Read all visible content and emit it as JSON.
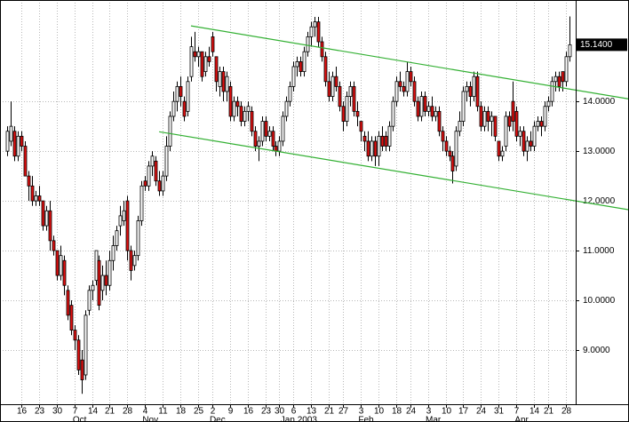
{
  "chart_data": {
    "type": "candlestick",
    "x": [
      "2002-09-10",
      "2002-09-11",
      "2002-09-12",
      "2002-09-13",
      "2002-09-16",
      "2002-09-17",
      "2002-09-18",
      "2002-09-19",
      "2002-09-20",
      "2002-09-23",
      "2002-09-24",
      "2002-09-25",
      "2002-09-26",
      "2002-09-27",
      "2002-09-30",
      "2002-10-01",
      "2002-10-02",
      "2002-10-03",
      "2002-10-04",
      "2002-10-07",
      "2002-10-08",
      "2002-10-09",
      "2002-10-10",
      "2002-10-11",
      "2002-10-14",
      "2002-10-15",
      "2002-10-16",
      "2002-10-17",
      "2002-10-18",
      "2002-10-21",
      "2002-10-22",
      "2002-10-23",
      "2002-10-24",
      "2002-10-25",
      "2002-10-28",
      "2002-10-29",
      "2002-10-30",
      "2002-10-31",
      "2002-11-01",
      "2002-11-04",
      "2002-11-05",
      "2002-11-06",
      "2002-11-07",
      "2002-11-08",
      "2002-11-11",
      "2002-11-12",
      "2002-11-13",
      "2002-11-14",
      "2002-11-15",
      "2002-11-18",
      "2002-11-19",
      "2002-11-20",
      "2002-11-21",
      "2002-11-22",
      "2002-11-25",
      "2002-11-26",
      "2002-11-27",
      "2002-11-29",
      "2002-12-02",
      "2002-12-03",
      "2002-12-04",
      "2002-12-05",
      "2002-12-06",
      "2002-12-09",
      "2002-12-10",
      "2002-12-11",
      "2002-12-12",
      "2002-12-13",
      "2002-12-16",
      "2002-12-17",
      "2002-12-18",
      "2002-12-19",
      "2002-12-20",
      "2002-12-23",
      "2002-12-24",
      "2002-12-26",
      "2002-12-27",
      "2002-12-30",
      "2002-12-31",
      "2003-01-02",
      "2003-01-03",
      "2003-01-06",
      "2003-01-07",
      "2003-01-08",
      "2003-01-09",
      "2003-01-10",
      "2003-01-13",
      "2003-01-14",
      "2003-01-15",
      "2003-01-16",
      "2003-01-17",
      "2003-01-21",
      "2003-01-22",
      "2003-01-23",
      "2003-01-24",
      "2003-01-27",
      "2003-01-28",
      "2003-01-29",
      "2003-01-30",
      "2003-01-31",
      "2003-02-03",
      "2003-02-04",
      "2003-02-05",
      "2003-02-06",
      "2003-02-07",
      "2003-02-10",
      "2003-02-11",
      "2003-02-12",
      "2003-02-13",
      "2003-02-14",
      "2003-02-18",
      "2003-02-19",
      "2003-02-20",
      "2003-02-21",
      "2003-02-24",
      "2003-02-25",
      "2003-02-26",
      "2003-02-27",
      "2003-02-28",
      "2003-03-03",
      "2003-03-04",
      "2003-03-05",
      "2003-03-06",
      "2003-03-07",
      "2003-03-10",
      "2003-03-11",
      "2003-03-12",
      "2003-03-13",
      "2003-03-14",
      "2003-03-17",
      "2003-03-18",
      "2003-03-19",
      "2003-03-20",
      "2003-03-21",
      "2003-03-24",
      "2003-03-25",
      "2003-03-26",
      "2003-03-27",
      "2003-03-28",
      "2003-03-31",
      "2003-04-01",
      "2003-04-02",
      "2003-04-03",
      "2003-04-04",
      "2003-04-07",
      "2003-04-08",
      "2003-04-09",
      "2003-04-10",
      "2003-04-11",
      "2003-04-14",
      "2003-04-15",
      "2003-04-16",
      "2003-04-17",
      "2003-04-21",
      "2003-04-22",
      "2003-04-23",
      "2003-04-24",
      "2003-04-25",
      "2003-04-28",
      "2003-04-29"
    ],
    "open": [
      13.0,
      13.2,
      13.4,
      12.9,
      13.3,
      13.1,
      12.5,
      12.3,
      12.0,
      12.1,
      12.0,
      11.5,
      11.8,
      11.2,
      11.0,
      10.5,
      10.8,
      10.2,
      9.9,
      9.4,
      9.2,
      8.8,
      8.5,
      9.8,
      10.2,
      10.4,
      10.8,
      10.2,
      10.5,
      10.3,
      10.8,
      11.1,
      11.5,
      11.6,
      12.0,
      11.0,
      10.7,
      10.9,
      11.6,
      12.4,
      12.3,
      12.7,
      12.8,
      12.4,
      12.2,
      12.5,
      13.1,
      13.7,
      14.0,
      14.3,
      14.0,
      13.8,
      14.5,
      15.0,
      14.9,
      15.0,
      14.6,
      14.9,
      15.3,
      14.9,
      14.3,
      14.6,
      14.2,
      14.3,
      13.7,
      14.0,
      13.9,
      13.6,
      13.8,
      13.8,
      13.4,
      13.1,
      13.2,
      13.6,
      13.3,
      13.4,
      13.1,
      13.0,
      13.2,
      13.7,
      14.0,
      14.3,
      14.7,
      14.8,
      14.6,
      15.0,
      15.3,
      15.5,
      15.6,
      15.2,
      14.9,
      14.4,
      14.1,
      14.5,
      14.3,
      13.9,
      13.6,
      14.1,
      14.3,
      13.8,
      13.6,
      13.3,
      13.2,
      12.9,
      13.2,
      12.9,
      13.3,
      13.3,
      13.1,
      13.5,
      14.0,
      14.4,
      14.3,
      14.2,
      14.6,
      14.4,
      14.0,
      13.7,
      14.1,
      13.8,
      13.9,
      13.7,
      13.8,
      13.4,
      13.2,
      13.0,
      12.9,
      12.7,
      13.4,
      13.6,
      14.2,
      14.3,
      14.1,
      14.5,
      13.9,
      13.5,
      13.8,
      13.6,
      13.7,
      13.2,
      12.9,
      13.1,
      13.7,
      14.0,
      13.8,
      13.3,
      13.4,
      13.0,
      13.2,
      13.1,
      13.5,
      13.6,
      13.5,
      13.9,
      14.0,
      14.4,
      14.5,
      14.6,
      14.4,
      14.9
    ],
    "high": [
      13.5,
      14.0,
      13.5,
      13.4,
      13.4,
      13.2,
      12.6,
      12.5,
      12.2,
      12.3,
      12.0,
      11.9,
      12.0,
      11.3,
      11.0,
      11.1,
      10.9,
      10.3,
      10.0,
      9.5,
      9.3,
      9.0,
      9.8,
      10.3,
      10.4,
      11.0,
      10.9,
      10.7,
      10.8,
      11.0,
      11.3,
      11.5,
      11.9,
      12.0,
      12.1,
      11.1,
      11.0,
      11.7,
      12.4,
      12.5,
      12.8,
      13.0,
      12.9,
      12.6,
      12.6,
      13.3,
      13.8,
      14.2,
      14.4,
      14.5,
      14.1,
      14.5,
      15.3,
      15.4,
      15.1,
      15.0,
      15.0,
      15.1,
      15.4,
      14.9,
      14.7,
      14.7,
      14.6,
      14.4,
      14.1,
      14.1,
      14.0,
      13.9,
      14.0,
      13.9,
      13.5,
      13.3,
      13.7,
      13.7,
      13.5,
      13.5,
      13.2,
      13.3,
      13.8,
      14.1,
      14.4,
      14.8,
      14.9,
      14.9,
      15.1,
      15.4,
      15.6,
      15.7,
      15.7,
      15.3,
      15.0,
      14.6,
      14.6,
      14.7,
      14.4,
      14.0,
      14.2,
      14.4,
      14.4,
      14.0,
      13.6,
      13.4,
      13.4,
      13.3,
      13.3,
      13.4,
      13.5,
      13.4,
      13.6,
      14.1,
      14.5,
      14.6,
      14.4,
      14.8,
      14.7,
      14.5,
      14.1,
      14.2,
      14.2,
      14.0,
      14.1,
      13.9,
      13.9,
      13.5,
      13.3,
      13.1,
      13.0,
      13.5,
      13.8,
      14.3,
      14.4,
      14.4,
      14.6,
      14.6,
      14.0,
      13.9,
      13.9,
      13.8,
      13.7,
      13.2,
      13.1,
      13.8,
      13.8,
      14.4,
      13.9,
      13.5,
      13.5,
      13.3,
      13.4,
      13.6,
      13.7,
      13.7,
      14.0,
      14.1,
      14.5,
      14.6,
      14.6,
      14.6,
      15.0,
      15.71
    ],
    "low": [
      12.9,
      13.1,
      12.8,
      12.8,
      13.0,
      12.5,
      12.0,
      11.9,
      11.9,
      11.9,
      11.4,
      11.4,
      11.0,
      10.9,
      10.4,
      10.4,
      10.1,
      9.6,
      9.3,
      9.0,
      8.5,
      8.12,
      8.4,
      9.7,
      10.0,
      10.3,
      9.8,
      10.0,
      10.1,
      10.2,
      10.6,
      11.0,
      11.3,
      11.5,
      10.8,
      10.4,
      10.6,
      10.8,
      11.5,
      12.2,
      12.2,
      12.5,
      12.3,
      12.1,
      12.1,
      12.4,
      13.0,
      13.6,
      13.8,
      13.9,
      13.6,
      13.7,
      14.4,
      14.8,
      14.7,
      14.4,
      14.5,
      14.7,
      14.9,
      14.2,
      14.1,
      14.0,
      14.0,
      13.6,
      13.6,
      13.7,
      13.5,
      13.5,
      13.6,
      13.3,
      13.0,
      12.8,
      13.1,
      13.2,
      13.2,
      13.0,
      12.9,
      12.9,
      13.1,
      13.6,
      13.9,
      14.2,
      14.5,
      14.5,
      14.5,
      14.9,
      15.1,
      15.3,
      15.1,
      14.8,
      14.3,
      14.0,
      14.0,
      14.2,
      13.8,
      13.4,
      13.5,
      13.9,
      13.7,
      13.5,
      13.2,
      13.0,
      12.8,
      12.8,
      12.7,
      12.7,
      13.0,
      13.0,
      13.0,
      13.4,
      13.9,
      14.2,
      14.1,
      14.1,
      14.3,
      13.9,
      13.6,
      13.6,
      13.7,
      13.7,
      13.6,
      13.6,
      13.3,
      13.0,
      12.9,
      12.8,
      12.35,
      12.6,
      13.3,
      13.5,
      14.0,
      13.9,
      14.0,
      13.8,
      13.4,
      13.4,
      13.4,
      13.3,
      13.2,
      12.8,
      12.8,
      13.0,
      13.4,
      13.4,
      13.2,
      13.1,
      12.9,
      12.8,
      13.0,
      13.0,
      13.4,
      13.3,
      13.4,
      13.8,
      13.9,
      14.2,
      14.2,
      14.2,
      14.3,
      14.8
    ],
    "close": [
      13.4,
      13.5,
      12.9,
      13.3,
      13.1,
      12.5,
      12.3,
      12.0,
      12.1,
      12.0,
      11.5,
      11.8,
      11.2,
      11.0,
      10.5,
      10.9,
      10.3,
      9.7,
      9.4,
      9.2,
      8.6,
      8.4,
      9.7,
      10.2,
      10.3,
      11.0,
      9.9,
      10.5,
      10.3,
      10.8,
      11.1,
      11.4,
      11.7,
      11.8,
      11.0,
      10.6,
      10.9,
      11.6,
      12.3,
      12.3,
      12.7,
      12.9,
      12.4,
      12.2,
      12.5,
      13.1,
      13.7,
      14.0,
      14.3,
      14.1,
      13.7,
      14.4,
      15.1,
      14.9,
      15.0,
      14.5,
      14.9,
      14.8,
      15.0,
      14.4,
      14.6,
      14.2,
      14.5,
      13.7,
      14.0,
      13.9,
      13.6,
      13.8,
      13.9,
      13.4,
      13.1,
      13.2,
      13.6,
      13.3,
      13.4,
      13.1,
      13.0,
      13.2,
      13.7,
      14.0,
      14.3,
      14.7,
      14.8,
      14.6,
      15.0,
      15.3,
      15.5,
      15.6,
      15.2,
      14.9,
      14.4,
      14.1,
      14.5,
      14.3,
      13.9,
      13.6,
      14.1,
      14.3,
      13.8,
      13.7,
      13.4,
      13.2,
      12.9,
      13.2,
      12.9,
      13.3,
      13.1,
      13.1,
      13.5,
      14.0,
      14.4,
      14.3,
      14.2,
      14.6,
      14.4,
      14.0,
      13.7,
      14.1,
      13.8,
      13.9,
      13.7,
      13.8,
      13.4,
      13.2,
      13.0,
      12.9,
      12.6,
      13.4,
      13.6,
      14.2,
      14.3,
      14.1,
      14.5,
      13.9,
      13.5,
      13.8,
      13.6,
      13.7,
      13.3,
      12.9,
      13.0,
      13.7,
      13.5,
      13.6,
      13.3,
      13.4,
      13.0,
      13.2,
      13.1,
      13.5,
      13.6,
      13.5,
      13.9,
      14.0,
      14.4,
      14.5,
      14.3,
      14.4,
      14.9,
      15.14
    ],
    "up_color": "#ffffff",
    "down_color": "#e01010",
    "ylim": [
      7.91,
      16.04
    ],
    "yticks": [
      {
        "value": 9,
        "label": "9.0000"
      },
      {
        "value": 10,
        "label": "10.0000"
      },
      {
        "value": 11,
        "label": "11.0000"
      },
      {
        "value": 12,
        "label": "12.0000"
      },
      {
        "value": 13,
        "label": "13.0000"
      },
      {
        "value": 14,
        "label": "14.0000"
      }
    ],
    "xticks": [
      {
        "value": "2002-09-16",
        "label": "16"
      },
      {
        "value": "2002-09-23",
        "label": "23"
      },
      {
        "value": "2002-09-30",
        "label": "30"
      },
      {
        "value": "2002-10-07",
        "label": "7"
      },
      {
        "value": "2002-10-14",
        "label": "14"
      },
      {
        "value": "2002-10-21",
        "label": "21"
      },
      {
        "value": "2002-10-28",
        "label": "28"
      },
      {
        "value": "2002-11-04",
        "label": "4"
      },
      {
        "value": "2002-11-11",
        "label": "11"
      },
      {
        "value": "2002-11-18",
        "label": "18"
      },
      {
        "value": "2002-11-25",
        "label": "25"
      },
      {
        "value": "2002-12-02",
        "label": "2"
      },
      {
        "value": "2002-12-09",
        "label": "9"
      },
      {
        "value": "2002-12-16",
        "label": "16"
      },
      {
        "value": "2002-12-23",
        "label": "23"
      },
      {
        "value": "2002-12-30",
        "label": "30"
      },
      {
        "value": "2003-01-06",
        "label": "6"
      },
      {
        "value": "2003-01-13",
        "label": "13"
      },
      {
        "value": "2003-01-21",
        "label": "21"
      },
      {
        "value": "2003-01-27",
        "label": "27"
      },
      {
        "value": "2003-02-03",
        "label": "3"
      },
      {
        "value": "2003-02-10",
        "label": "10"
      },
      {
        "value": "2003-02-18",
        "label": "18"
      },
      {
        "value": "2003-02-24",
        "label": "24"
      },
      {
        "value": "2003-03-03",
        "label": "3"
      },
      {
        "value": "2003-03-10",
        "label": "10"
      },
      {
        "value": "2003-03-17",
        "label": "17"
      },
      {
        "value": "2003-03-24",
        "label": "24"
      },
      {
        "value": "2003-03-31",
        "label": "31"
      },
      {
        "value": "2003-04-07",
        "label": "7"
      },
      {
        "value": "2003-04-14",
        "label": "14"
      },
      {
        "value": "2003-04-21",
        "label": "21"
      },
      {
        "value": "2003-04-28",
        "label": "28"
      }
    ],
    "month_ticks": [
      {
        "value": "2002-10-07",
        "label": "Oct"
      },
      {
        "value": "2002-11-04",
        "label": "Nov"
      },
      {
        "value": "2002-12-02",
        "label": "Dec"
      },
      {
        "value": "2003-01-06",
        "label": "Jan 2003"
      },
      {
        "value": "2003-02-03",
        "label": "Feb"
      },
      {
        "value": "2003-03-03",
        "label": "Mar"
      },
      {
        "value": "2003-04-07",
        "label": "Apr"
      }
    ],
    "grid": true,
    "last_price": {
      "value": 15.14,
      "label": "15.1400"
    },
    "trend_lines": [
      {
        "color": "#33b033",
        "points": [
          {
            "x": "2002-11-21",
            "y": 15.52
          },
          {
            "x": "2003-04-29",
            "y": 14.25
          }
        ]
      },
      {
        "color": "#33b033",
        "points": [
          {
            "x": "2002-11-08",
            "y": 13.39
          },
          {
            "x": "2003-04-29",
            "y": 12.02
          }
        ]
      }
    ]
  }
}
